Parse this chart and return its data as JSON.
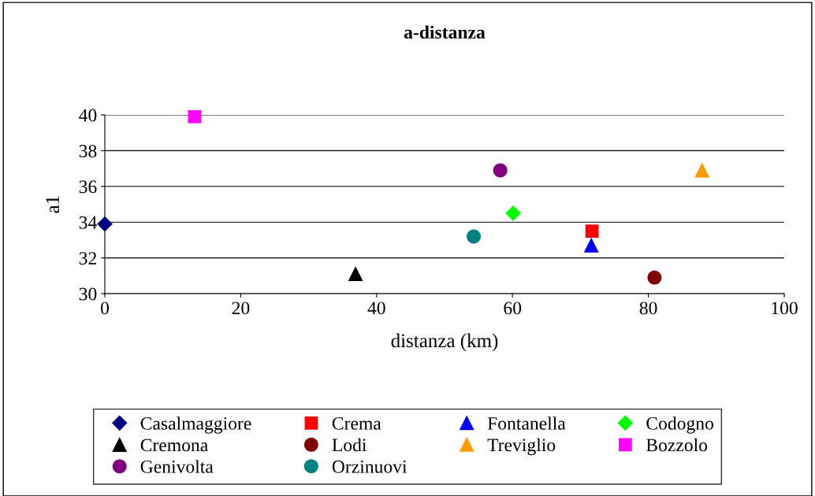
{
  "chart_data": {
    "type": "scatter",
    "title": "a-distanza",
    "xlabel": "distanza (km)",
    "ylabel": "a1",
    "xlim": [
      0,
      100
    ],
    "xticks": [
      0,
      20,
      40,
      60,
      80,
      100
    ],
    "ylim": [
      30,
      40
    ],
    "yticks": [
      30,
      32,
      34,
      36,
      38,
      40
    ],
    "grid": "y",
    "legend": "bottom",
    "series": [
      {
        "name": "Casalmaggiore",
        "color": "#000080",
        "marker": "diamond",
        "x": [
          0
        ],
        "values": [
          33.9
        ]
      },
      {
        "name": "Cremona",
        "color": "#000000",
        "marker": "triangle",
        "x": [
          36.9
        ],
        "values": [
          31.1
        ]
      },
      {
        "name": "Genivolta",
        "color": "#800080",
        "marker": "circle",
        "x": [
          58.2
        ],
        "values": [
          36.9
        ]
      },
      {
        "name": "Crema",
        "color": "#ff0000",
        "marker": "square",
        "x": [
          71.7
        ],
        "values": [
          33.5
        ]
      },
      {
        "name": "Lodi",
        "color": "#800000",
        "marker": "circle",
        "x": [
          80.9
        ],
        "values": [
          30.9
        ]
      },
      {
        "name": "Orzinuovi",
        "color": "#008080",
        "marker": "circle",
        "x": [
          54.3
        ],
        "values": [
          33.2
        ]
      },
      {
        "name": "Fontanella",
        "color": "#0000ff",
        "marker": "triangle",
        "x": [
          71.6
        ],
        "values": [
          32.7
        ]
      },
      {
        "name": "Treviglio",
        "color": "#ff9900",
        "marker": "triangle",
        "x": [
          87.9
        ],
        "values": [
          36.9
        ]
      },
      {
        "name": "Codogno",
        "color": "#00ff00",
        "marker": "diamond",
        "x": [
          60.1
        ],
        "values": [
          34.5
        ]
      },
      {
        "name": "Bozzolo",
        "color": "#ff00ff",
        "marker": "square",
        "x": [
          13.2
        ],
        "values": [
          39.9
        ]
      }
    ]
  }
}
